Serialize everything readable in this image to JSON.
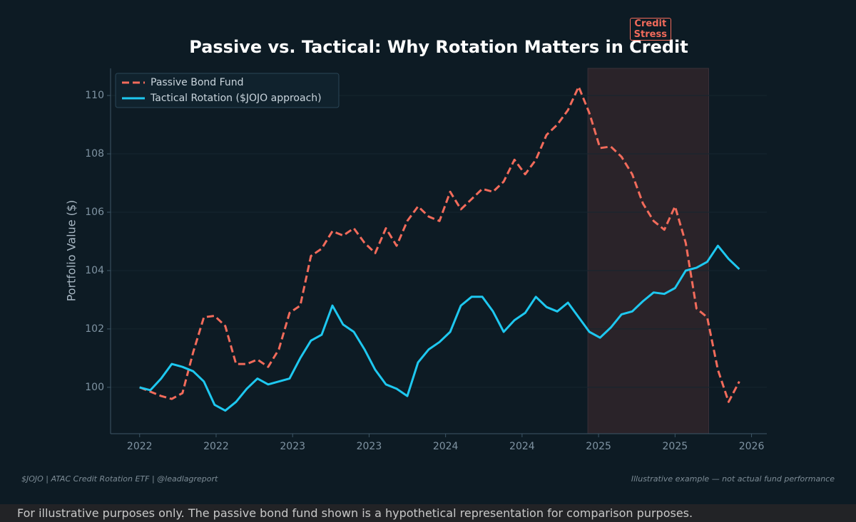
{
  "chart_data": {
    "type": "line",
    "title": "Passive vs. Tactical: Why Rotation Matters in Credit",
    "y_label": "Portfolio Value ($)",
    "x": [
      2022,
      2022.07,
      2022.14,
      2022.21,
      2022.28,
      2022.35,
      2022.42,
      2022.49,
      2022.56,
      2022.63,
      2022.7,
      2022.77,
      2022.84,
      2022.91,
      2022.98,
      2023.05,
      2023.12,
      2023.19,
      2023.26,
      2023.33,
      2023.4,
      2023.47,
      2023.54,
      2023.61,
      2023.68,
      2023.75,
      2023.82,
      2023.89,
      2023.96,
      2024.03,
      2024.1,
      2024.17,
      2024.24,
      2024.31,
      2024.38,
      2024.45,
      2024.52,
      2024.59,
      2024.66,
      2024.73,
      2024.8,
      2024.87,
      2024.94,
      2025.01,
      2025.08,
      2025.15,
      2025.22,
      2025.29,
      2025.36,
      2025.43,
      2025.5,
      2025.57,
      2025.64,
      2025.71,
      2025.78,
      2025.85,
      2025.92
    ],
    "series": [
      {
        "name": "Passive Bond Fund",
        "color": "#f26b5b",
        "dashed": true,
        "values": [
          100.0,
          99.85,
          99.7,
          99.6,
          99.8,
          101.2,
          102.4,
          102.45,
          102.1,
          100.8,
          100.8,
          100.95,
          100.7,
          101.3,
          102.55,
          102.8,
          104.5,
          104.75,
          105.35,
          105.2,
          105.45,
          104.95,
          104.6,
          105.45,
          104.85,
          105.7,
          106.2,
          105.85,
          105.7,
          106.7,
          106.1,
          106.45,
          106.8,
          106.7,
          107.05,
          107.8,
          107.3,
          107.8,
          108.65,
          109.0,
          109.5,
          110.3,
          109.4,
          108.2,
          108.25,
          107.9,
          107.3,
          106.3,
          105.7,
          105.4,
          106.2,
          104.95,
          102.7,
          102.4,
          100.6,
          99.5,
          100.2
        ]
      },
      {
        "name": "Tactical Rotation ($JOJO approach)",
        "color": "#1ec8f0",
        "dashed": false,
        "values": [
          100.0,
          99.9,
          100.3,
          100.8,
          100.7,
          100.55,
          100.2,
          99.4,
          99.2,
          99.5,
          99.95,
          100.3,
          100.1,
          100.2,
          100.3,
          101.0,
          101.6,
          101.8,
          102.8,
          102.15,
          101.9,
          101.3,
          100.6,
          100.1,
          99.95,
          99.7,
          100.85,
          101.3,
          101.55,
          101.9,
          102.8,
          103.1,
          103.1,
          102.6,
          101.9,
          102.3,
          102.55,
          103.1,
          102.75,
          102.6,
          102.9,
          102.4,
          101.9,
          101.7,
          102.05,
          102.5,
          102.6,
          102.95,
          103.25,
          103.2,
          103.4,
          104.0,
          104.1,
          104.3,
          104.85,
          104.4,
          104.05
        ]
      }
    ],
    "shade": {
      "range": [
        2024.93,
        2025.72
      ],
      "label": "Credit Stress",
      "color": "#2a2329"
    },
    "xlim": [
      2021.81,
      2026.1
    ],
    "xticks": [
      2022,
      {
        "value": 2022.5,
        "label": "2022"
      },
      2023,
      {
        "value": 2023.5,
        "label": "2023"
      },
      2024,
      {
        "value": 2024.5,
        "label": "2024"
      },
      2025,
      {
        "value": 2025.5,
        "label": "2025"
      },
      2026
    ],
    "ylim": [
      98.41,
      110.93
    ],
    "yticks": [
      100,
      102,
      104,
      106,
      108,
      110
    ],
    "grid": true,
    "legend": "upper-left",
    "footer_left": "$JOJO  |  ATAC Credit Rotation ETF  |  @leadlagreport",
    "footer_right": "Illustrative example — not actual fund performance",
    "disclaimer": "For illustrative purposes only. The passive bond fund shown is a hypothetical representation for comparison purposes."
  }
}
